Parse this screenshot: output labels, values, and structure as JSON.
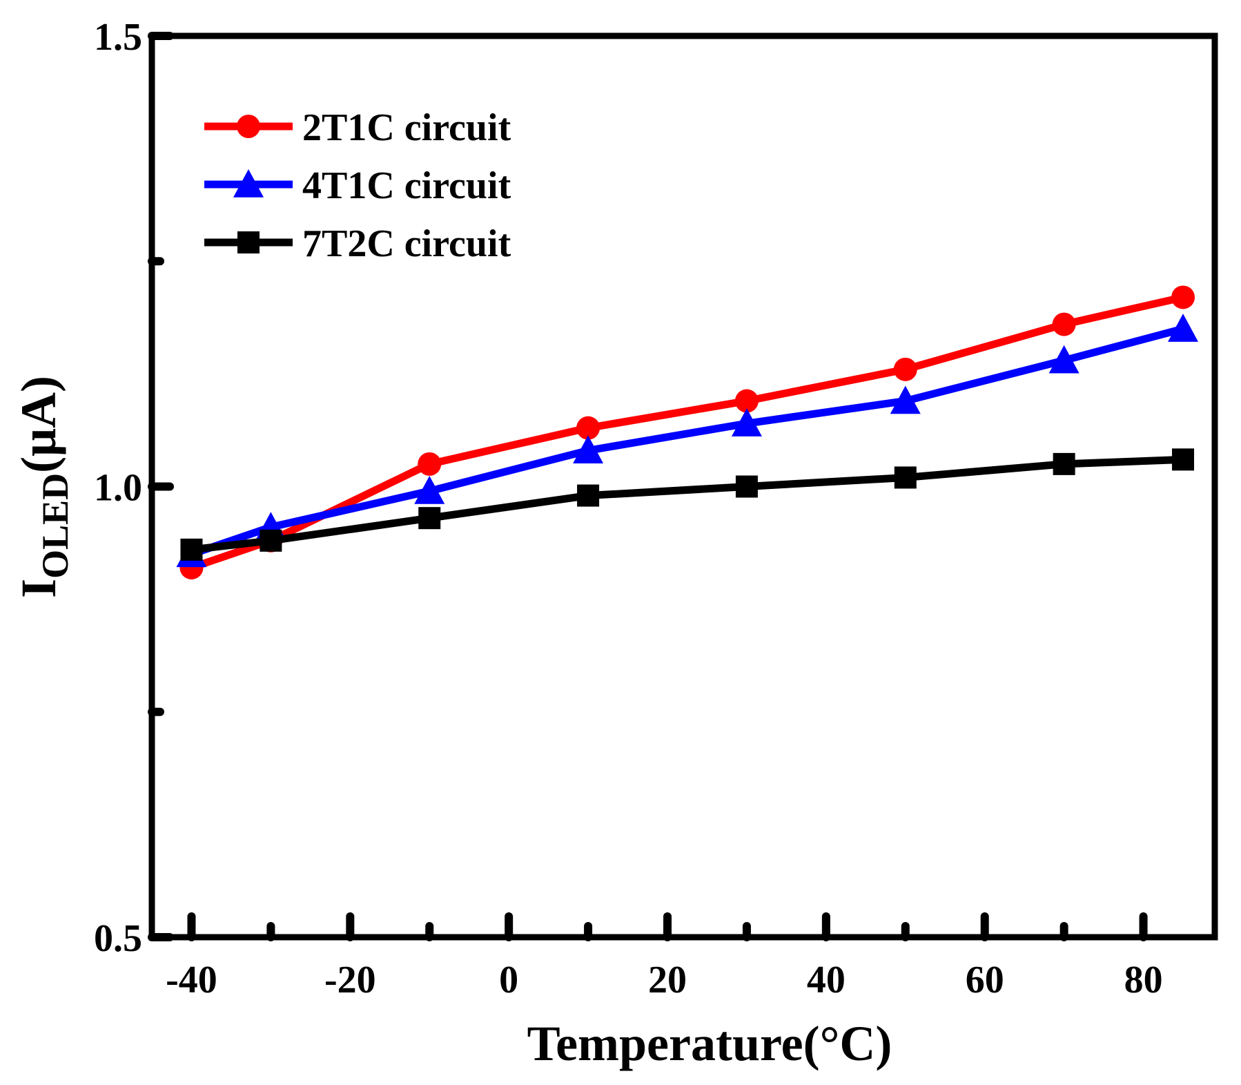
{
  "chart_data": {
    "type": "line",
    "title": "",
    "xlabel": "Temperature(°C)",
    "ylabel": {
      "main": "I",
      "subscript": "OLED",
      "unit": "(μA)"
    },
    "xlim": [
      -45,
      89
    ],
    "ylim": [
      0.5,
      1.5
    ],
    "xticks": [
      -40,
      -20,
      0,
      20,
      40,
      60,
      80
    ],
    "xtick_labels": [
      "-40",
      "-20",
      "0",
      "20",
      "40",
      "60",
      "80"
    ],
    "x_minor_ticks": [
      -30,
      -10,
      10,
      30,
      50,
      70
    ],
    "yticks": [
      0.5,
      1.0,
      1.5
    ],
    "ytick_labels": [
      "0.5",
      "1.0",
      "1.5"
    ],
    "y_minor_ticks": [
      0.75,
      1.25
    ],
    "grid": false,
    "legend_position": "top-left",
    "x": [
      -40,
      -30,
      -10,
      10,
      30,
      50,
      70,
      85
    ],
    "series": [
      {
        "name": "2T1C circuit",
        "color": "#ff0000",
        "marker": "circle",
        "values": [
          0.91,
          0.94,
          1.025,
          1.065,
          1.095,
          1.13,
          1.18,
          1.21
        ]
      },
      {
        "name": "4T1C circuit",
        "color": "#0000ff",
        "marker": "triangle",
        "values": [
          0.925,
          0.955,
          0.995,
          1.04,
          1.07,
          1.095,
          1.14,
          1.175
        ]
      },
      {
        "name": "7T2C circuit",
        "color": "#000000",
        "marker": "square",
        "values": [
          0.93,
          0.94,
          0.965,
          0.99,
          1.0,
          1.01,
          1.025,
          1.03
        ]
      }
    ]
  }
}
